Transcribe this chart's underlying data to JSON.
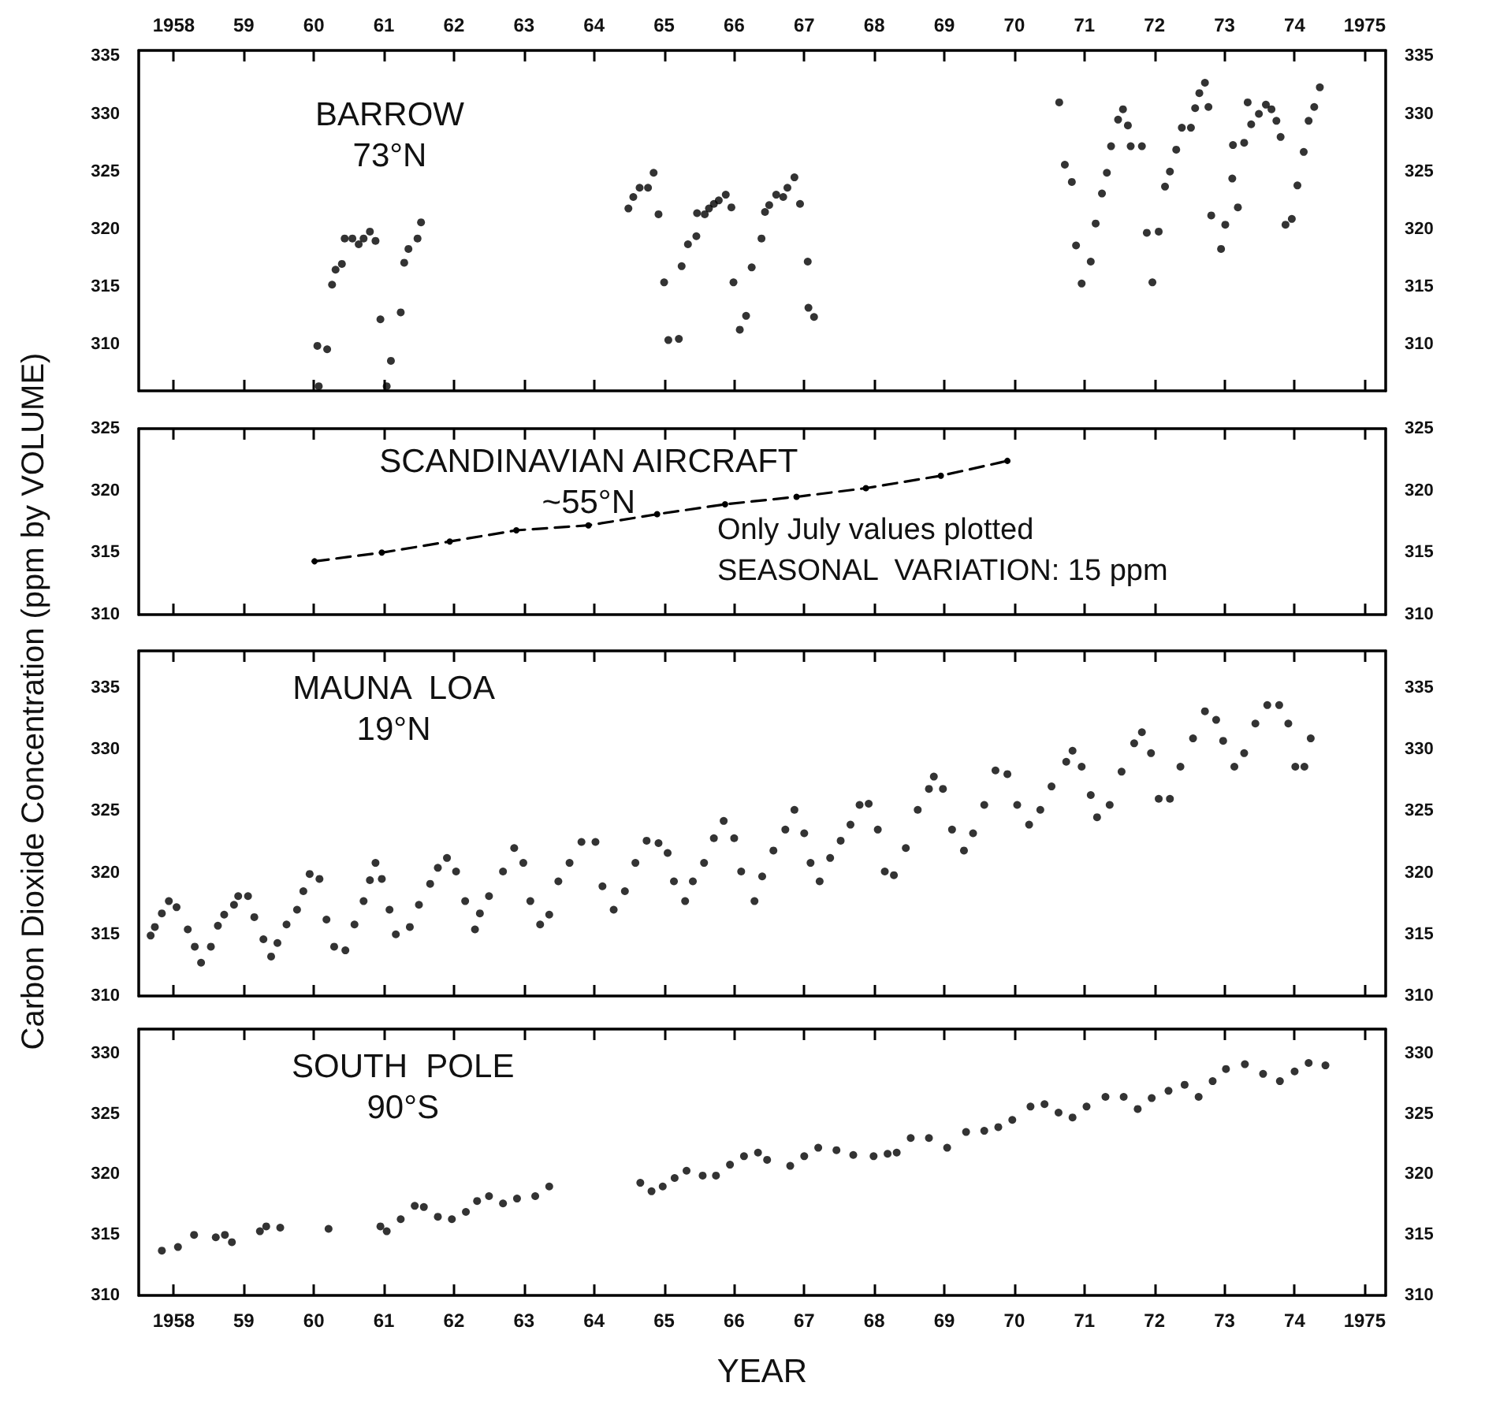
{
  "chart_data": [
    {
      "type": "scatter",
      "title": "BARROW\n73°N",
      "ylabel": "Carbon Dioxide Concentration (ppm by VOLUME)",
      "marker": "circle",
      "xlim": [
        1957.5,
        1975.3
      ],
      "x2lim": [
        1957.5,
        1975.3
      ],
      "x2ticks": [
        {
          "value": 1958,
          "label": "1958"
        },
        {
          "value": 1959,
          "label": "59"
        },
        {
          "value": 1960,
          "label": "60"
        },
        {
          "value": 1961,
          "label": "61"
        },
        {
          "value": 1962,
          "label": "62"
        },
        {
          "value": 1963,
          "label": "63"
        },
        {
          "value": 1964,
          "label": "64"
        },
        {
          "value": 1965,
          "label": "65"
        },
        {
          "value": 1966,
          "label": "66"
        },
        {
          "value": 1967,
          "label": "67"
        },
        {
          "value": 1968,
          "label": "68"
        },
        {
          "value": 1969,
          "label": "69"
        },
        {
          "value": 1970,
          "label": "70"
        },
        {
          "value": 1971,
          "label": "71"
        },
        {
          "value": 1972,
          "label": "72"
        },
        {
          "value": 1973,
          "label": "73"
        },
        {
          "value": 1974,
          "label": "74"
        },
        {
          "value": 1975,
          "label": "1975"
        }
      ],
      "ylim": [
        306,
        335.5
      ],
      "yticks": [
        310,
        315,
        320,
        325,
        330,
        335
      ],
      "y2lim": [
        306,
        335.5
      ],
      "y2ticks": [
        310,
        315,
        320,
        325,
        330,
        335
      ],
      "series": [
        {
          "color": "#000000",
          "x": [
            1960.05,
            1960.19,
            1960.07,
            1960.26,
            1960.31,
            1960.4,
            1960.44,
            1960.55,
            1960.64,
            1960.71,
            1960.8,
            1960.88,
            1960.95,
            1961.04,
            1961.1,
            1961.24,
            1961.29,
            1961.35,
            1961.48,
            1961.53,
            1964.49,
            1964.56,
            1964.65,
            1964.77,
            1964.85,
            1964.92,
            1965.0,
            1965.06,
            1965.21,
            1965.25,
            1965.34,
            1965.46,
            1965.47,
            1965.58,
            1965.64,
            1965.71,
            1965.78,
            1965.88,
            1965.96,
            1965.99,
            1966.08,
            1966.17,
            1966.25,
            1966.39,
            1966.44,
            1966.5,
            1966.6,
            1966.7,
            1966.76,
            1966.86,
            1966.94,
            1967.05,
            1967.06,
            1967.14,
            1970.64,
            1970.72,
            1970.82,
            1970.88,
            1970.96,
            1971.09,
            1971.16,
            1971.25,
            1971.32,
            1971.38,
            1971.48,
            1971.55,
            1971.62,
            1971.66,
            1971.82,
            1971.89,
            1971.97,
            1972.06,
            1972.15,
            1972.22,
            1972.31,
            1972.39,
            1972.52,
            1972.58,
            1972.64,
            1972.72,
            1972.77,
            1972.81,
            1972.95,
            1973.01,
            1973.11,
            1973.12,
            1973.19,
            1973.28,
            1973.33,
            1973.38,
            1973.49,
            1973.59,
            1973.67,
            1973.74,
            1973.8,
            1973.87,
            1973.96,
            1974.04,
            1974.13,
            1974.2,
            1974.28,
            1974.36
          ],
          "values": [
            309.9,
            309.6,
            306.4,
            315.2,
            316.5,
            317.0,
            319.2,
            319.2,
            318.7,
            319.2,
            319.8,
            319.0,
            312.2,
            306.4,
            308.6,
            312.8,
            317.1,
            318.3,
            319.2,
            320.6,
            321.8,
            322.8,
            323.6,
            323.6,
            324.9,
            321.3,
            315.4,
            310.4,
            310.5,
            316.8,
            318.7,
            319.4,
            321.4,
            321.3,
            321.8,
            322.2,
            322.5,
            323.0,
            321.9,
            315.4,
            311.3,
            312.5,
            316.7,
            319.2,
            321.5,
            322.1,
            323.0,
            322.8,
            323.6,
            324.5,
            322.2,
            317.2,
            313.2,
            312.4,
            331.0,
            325.6,
            324.1,
            318.6,
            315.3,
            317.2,
            320.5,
            323.1,
            324.9,
            327.2,
            329.5,
            330.4,
            329.0,
            327.2,
            327.2,
            319.7,
            315.4,
            319.8,
            323.7,
            325.0,
            326.9,
            328.8,
            328.8,
            330.5,
            331.8,
            332.7,
            330.6,
            321.2,
            318.3,
            320.4,
            324.4,
            327.3,
            321.9,
            327.5,
            331.0,
            329.1,
            330.0,
            330.8,
            330.4,
            329.4,
            328.0,
            320.4,
            320.9,
            323.8,
            326.7,
            329.4,
            330.6,
            332.3
          ]
        }
      ]
    },
    {
      "type": "line",
      "title": "SCANDINAVIAN AIRCRAFT\n~55°N",
      "annotations": [
        "Only July values plotted",
        "SEASONAL  VARIATION: 15 ppm"
      ],
      "marker": "circle",
      "line_style": "dashed",
      "tick_labels": "y",
      "xlim": [
        1957.5,
        1975.3
      ],
      "xticks": [
        1958,
        1959,
        1960,
        1961,
        1962,
        1963,
        1964,
        1965,
        1966,
        1967,
        1968,
        1969,
        1970,
        1971,
        1972,
        1973,
        1974,
        1975
      ],
      "ylim": [
        310,
        325
      ],
      "yticks": [
        310,
        315,
        320,
        325
      ],
      "y2lim": [
        310,
        325
      ],
      "y2ticks": [
        310,
        315,
        320,
        325
      ],
      "series": [
        {
          "color": "#000000",
          "x": [
            1960.01,
            1960.97,
            1961.94,
            1962.89,
            1963.92,
            1964.9,
            1965.87,
            1966.89,
            1967.88,
            1968.95,
            1969.9
          ],
          "values": [
            314.3,
            315.0,
            315.9,
            316.8,
            317.2,
            318.1,
            318.9,
            319.5,
            320.2,
            321.2,
            322.4
          ]
        }
      ]
    },
    {
      "type": "scatter",
      "title": "MAUNA  LOA\n19°N",
      "marker": "circle",
      "tick_labels": "y",
      "xlim": [
        1957.5,
        1975.3
      ],
      "xticks": [
        1958,
        1959,
        1960,
        1961,
        1962,
        1963,
        1964,
        1965,
        1966,
        1967,
        1968,
        1969,
        1970,
        1971,
        1972,
        1973,
        1974,
        1975
      ],
      "ylim": [
        310,
        338
      ],
      "yticks": [
        310,
        315,
        320,
        325,
        330,
        335
      ],
      "y2lim": [
        310,
        338
      ],
      "y2ticks": [
        310,
        315,
        320,
        325,
        330,
        335
      ],
      "series": [
        {
          "color": "#000000",
          "x": [
            1957.67,
            1957.73,
            1957.83,
            1957.93,
            1958.04,
            1958.2,
            1958.3,
            1958.39,
            1958.53,
            1958.63,
            1958.72,
            1958.86,
            1958.92,
            1959.06,
            1959.15,
            1959.28,
            1959.39,
            1959.48,
            1959.61,
            1959.76,
            1959.85,
            1959.94,
            1960.08,
            1960.18,
            1960.29,
            1960.45,
            1960.58,
            1960.71,
            1960.8,
            1960.88,
            1960.97,
            1961.08,
            1961.17,
            1961.37,
            1961.5,
            1961.66,
            1961.77,
            1961.9,
            1962.03,
            1962.16,
            1962.3,
            1962.37,
            1962.5,
            1962.7,
            1962.86,
            1962.99,
            1963.09,
            1963.23,
            1963.36,
            1963.49,
            1963.65,
            1963.82,
            1964.02,
            1964.12,
            1964.28,
            1964.44,
            1964.59,
            1964.75,
            1964.92,
            1965.05,
            1965.14,
            1965.3,
            1965.41,
            1965.57,
            1965.71,
            1965.85,
            1966.0,
            1966.1,
            1966.29,
            1966.4,
            1966.56,
            1966.73,
            1966.86,
            1967.0,
            1967.09,
            1967.22,
            1967.37,
            1967.52,
            1967.66,
            1967.79,
            1967.92,
            1968.05,
            1968.15,
            1968.28,
            1968.45,
            1968.62,
            1968.78,
            1968.85,
            1968.98,
            1969.11,
            1969.28,
            1969.41,
            1969.57,
            1969.73,
            1969.9,
            1970.04,
            1970.21,
            1970.37,
            1970.53,
            1970.74,
            1970.83,
            1970.96,
            1971.09,
            1971.18,
            1971.36,
            1971.53,
            1971.71,
            1971.82,
            1971.95,
            1972.06,
            1972.22,
            1972.37,
            1972.55,
            1972.72,
            1972.88,
            1972.98,
            1973.14,
            1973.28,
            1973.44,
            1973.61,
            1973.78,
            1973.91,
            1974.01,
            1974.14,
            1974.23
          ],
          "values": [
            314.9,
            315.6,
            316.7,
            317.7,
            317.2,
            315.4,
            314.0,
            312.7,
            314.0,
            315.7,
            316.6,
            317.4,
            318.1,
            318.1,
            316.4,
            314.6,
            313.2,
            314.3,
            315.8,
            317.0,
            318.5,
            319.9,
            319.5,
            316.2,
            314.0,
            313.7,
            315.8,
            317.7,
            319.4,
            320.8,
            319.5,
            317.0,
            315.0,
            315.6,
            317.4,
            319.1,
            320.4,
            321.2,
            320.1,
            317.7,
            315.4,
            316.7,
            318.1,
            320.1,
            322.0,
            320.8,
            317.7,
            315.8,
            316.6,
            319.3,
            320.8,
            322.5,
            322.5,
            318.9,
            317.0,
            318.5,
            320.8,
            322.6,
            322.4,
            321.6,
            319.3,
            317.7,
            319.3,
            320.8,
            322.8,
            324.2,
            322.8,
            320.1,
            317.7,
            319.7,
            321.8,
            323.5,
            325.1,
            323.2,
            320.8,
            319.3,
            321.2,
            322.6,
            323.9,
            325.5,
            325.6,
            323.5,
            320.1,
            319.8,
            322.0,
            325.1,
            326.8,
            327.8,
            326.8,
            323.5,
            321.8,
            323.2,
            325.5,
            328.3,
            328.0,
            325.5,
            323.9,
            325.1,
            327.0,
            329.0,
            329.9,
            328.6,
            326.3,
            324.5,
            325.5,
            328.2,
            330.5,
            331.4,
            329.7,
            326.0,
            326.0,
            328.6,
            330.9,
            333.1,
            332.4,
            330.7,
            328.6,
            329.7,
            332.1,
            333.6,
            333.6,
            332.1,
            328.6,
            328.6,
            330.9
          ]
        }
      ]
    },
    {
      "type": "scatter",
      "title": "SOUTH  POLE\n90°S",
      "xlabel": "YEAR",
      "marker": "circle",
      "xlim": [
        1957.5,
        1975.3
      ],
      "xticks": [
        {
          "value": 1958,
          "label": "1958"
        },
        {
          "value": 1959,
          "label": "59"
        },
        {
          "value": 1960,
          "label": "60"
        },
        {
          "value": 1961,
          "label": "61"
        },
        {
          "value": 1962,
          "label": "62"
        },
        {
          "value": 1963,
          "label": "63"
        },
        {
          "value": 1964,
          "label": "64"
        },
        {
          "value": 1965,
          "label": "65"
        },
        {
          "value": 1966,
          "label": "66"
        },
        {
          "value": 1967,
          "label": "67"
        },
        {
          "value": 1968,
          "label": "68"
        },
        {
          "value": 1969,
          "label": "69"
        },
        {
          "value": 1970,
          "label": "70"
        },
        {
          "value": 1971,
          "label": "71"
        },
        {
          "value": 1972,
          "label": "72"
        },
        {
          "value": 1973,
          "label": "73"
        },
        {
          "value": 1974,
          "label": "74"
        },
        {
          "value": 1975,
          "label": "1975"
        }
      ],
      "ylim": [
        310,
        332
      ],
      "yticks": [
        310,
        315,
        320,
        325,
        330
      ],
      "y2lim": [
        310,
        332
      ],
      "y2ticks": [
        310,
        315,
        320,
        325,
        330
      ],
      "series": [
        {
          "color": "#000000",
          "x": [
            1957.83,
            1958.06,
            1958.29,
            1958.6,
            1958.73,
            1958.83,
            1959.23,
            1959.32,
            1959.52,
            1960.21,
            1960.95,
            1961.04,
            1961.24,
            1961.44,
            1961.57,
            1961.77,
            1961.97,
            1962.17,
            1962.33,
            1962.5,
            1962.7,
            1962.9,
            1963.16,
            1963.36,
            1964.66,
            1964.82,
            1964.98,
            1965.15,
            1965.32,
            1965.55,
            1965.74,
            1965.94,
            1966.14,
            1966.34,
            1966.47,
            1966.8,
            1967.0,
            1967.2,
            1967.46,
            1967.7,
            1967.99,
            1968.19,
            1968.32,
            1968.52,
            1968.78,
            1969.04,
            1969.31,
            1969.57,
            1969.77,
            1969.97,
            1970.23,
            1970.43,
            1970.63,
            1970.83,
            1971.03,
            1971.3,
            1971.56,
            1971.76,
            1971.96,
            1972.2,
            1972.43,
            1972.63,
            1972.83,
            1973.02,
            1973.29,
            1973.55,
            1973.79,
            1974.0,
            1974.2,
            1974.44
          ],
          "values": [
            313.7,
            314.0,
            315.0,
            314.8,
            315.0,
            314.4,
            315.3,
            315.7,
            315.6,
            315.5,
            315.7,
            315.3,
            316.3,
            317.4,
            317.3,
            316.5,
            316.3,
            316.9,
            317.8,
            318.2,
            317.6,
            318.0,
            318.2,
            319.0,
            319.3,
            318.6,
            319.0,
            319.7,
            320.3,
            319.9,
            319.9,
            320.8,
            321.5,
            321.8,
            321.2,
            320.7,
            321.5,
            322.2,
            322.0,
            321.6,
            321.5,
            321.7,
            321.8,
            323.0,
            323.0,
            322.2,
            323.5,
            323.6,
            323.9,
            324.5,
            325.6,
            325.8,
            325.1,
            324.7,
            325.6,
            326.4,
            326.4,
            325.4,
            326.3,
            326.9,
            327.4,
            326.4,
            327.7,
            328.7,
            329.1,
            328.3,
            327.7,
            328.5,
            329.2,
            329.0
          ]
        }
      ]
    }
  ]
}
